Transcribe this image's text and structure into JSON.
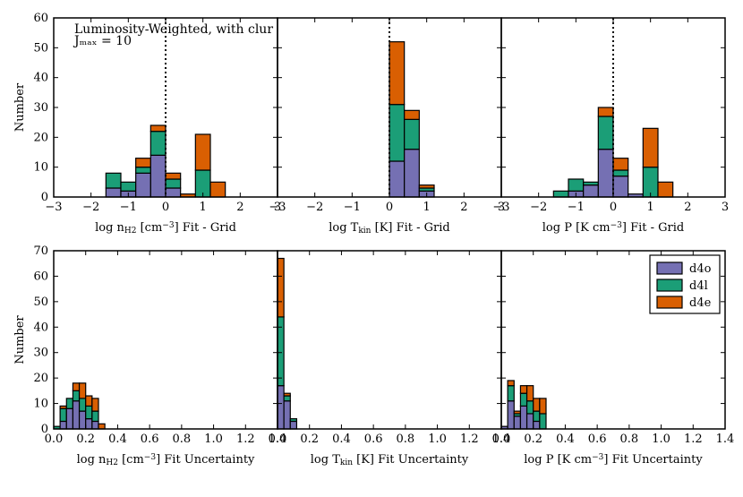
{
  "colors": {
    "d4o": "#7570b3",
    "d4l": "#1b9e77",
    "d4e": "#d95f02"
  },
  "chart_data": {
    "type": "bar",
    "stacking": "stacked",
    "series_names": [
      "d4o",
      "d4l",
      "d4e"
    ],
    "annotation": {
      "line1": "Luminosity-Weighted, with clur",
      "line2": "Jₘₐₓ = 10"
    },
    "legend": {
      "position": "top-right",
      "entries": [
        "d4o",
        "d4l",
        "d4e"
      ]
    },
    "rows": [
      {
        "ylabel": "Number",
        "ylim": [
          0,
          60
        ],
        "yticks": [
          "0",
          "10",
          "20",
          "30",
          "40",
          "50",
          "60"
        ]
      },
      {
        "ylabel": "Number",
        "ylim": [
          0,
          70
        ],
        "yticks": [
          "0",
          "10",
          "20",
          "30",
          "40",
          "50",
          "60",
          "70"
        ]
      }
    ],
    "panels": [
      {
        "id": "top-nh2",
        "row": 0,
        "col": 0,
        "xlabel": "log n_H2 [cm^-3] Fit - Grid",
        "xlim": [
          -3,
          3
        ],
        "xticks": [
          "−3",
          "−2",
          "−1",
          "0",
          "1",
          "2",
          "3"
        ],
        "xtick_values": [
          -3,
          -2,
          -1,
          0,
          1,
          2,
          3
        ],
        "vline": 0,
        "bin_width": 0.4,
        "bins": [
          {
            "x": -1.6,
            "d4o": 3,
            "d4l": 5,
            "d4e": 0
          },
          {
            "x": -1.2,
            "d4o": 2,
            "d4l": 3,
            "d4e": 0
          },
          {
            "x": -0.8,
            "d4o": 8,
            "d4l": 2,
            "d4e": 3
          },
          {
            "x": -0.4,
            "d4o": 14,
            "d4l": 8,
            "d4e": 2
          },
          {
            "x": 0.0,
            "d4o": 3,
            "d4l": 3,
            "d4e": 2
          },
          {
            "x": 0.4,
            "d4o": 0,
            "d4l": 0,
            "d4e": 1
          },
          {
            "x": 0.8,
            "d4o": 0,
            "d4l": 9,
            "d4e": 12
          },
          {
            "x": 1.2,
            "d4o": 0,
            "d4l": 0,
            "d4e": 5
          }
        ]
      },
      {
        "id": "top-tkin",
        "row": 0,
        "col": 1,
        "xlabel": "log T_kin [K] Fit - Grid",
        "xlim": [
          -3,
          3
        ],
        "xticks": [
          "−3",
          "−2",
          "−1",
          "0",
          "1",
          "2",
          "3"
        ],
        "xtick_values": [
          -3,
          -2,
          -1,
          0,
          1,
          2,
          3
        ],
        "vline": 0,
        "bin_width": 0.4,
        "bins": [
          {
            "x": 0.0,
            "d4o": 12,
            "d4l": 19,
            "d4e": 21
          },
          {
            "x": 0.4,
            "d4o": 16,
            "d4l": 10,
            "d4e": 3
          },
          {
            "x": 0.8,
            "d4o": 2,
            "d4l": 1,
            "d4e": 1
          }
        ]
      },
      {
        "id": "top-p",
        "row": 0,
        "col": 2,
        "xlabel": "log P [K cm^-3] Fit - Grid",
        "xlim": [
          -3,
          3
        ],
        "xticks": [
          "−3",
          "−2",
          "−1",
          "0",
          "1",
          "2",
          "3"
        ],
        "xtick_values": [
          -3,
          -2,
          -1,
          0,
          1,
          2,
          3
        ],
        "vline": 0,
        "bin_width": 0.4,
        "bins": [
          {
            "x": -1.6,
            "d4o": 0,
            "d4l": 2,
            "d4e": 0
          },
          {
            "x": -1.2,
            "d4o": 2,
            "d4l": 4,
            "d4e": 0
          },
          {
            "x": -0.8,
            "d4o": 4,
            "d4l": 1,
            "d4e": 0
          },
          {
            "x": -0.4,
            "d4o": 16,
            "d4l": 11,
            "d4e": 3
          },
          {
            "x": 0.0,
            "d4o": 7,
            "d4l": 2,
            "d4e": 4
          },
          {
            "x": 0.4,
            "d4o": 1,
            "d4l": 0,
            "d4e": 0
          },
          {
            "x": 0.8,
            "d4o": 0,
            "d4l": 10,
            "d4e": 13
          },
          {
            "x": 1.2,
            "d4o": 0,
            "d4l": 0,
            "d4e": 5
          }
        ]
      },
      {
        "id": "bottom-nh2",
        "row": 1,
        "col": 0,
        "xlabel": "log n_H2 [cm^-3] Fit Uncertainty",
        "xlim": [
          0,
          1.4
        ],
        "xticks": [
          "0.0",
          "0.2",
          "0.4",
          "0.6",
          "0.8",
          "1.0",
          "1.2",
          "1.4"
        ],
        "xtick_values": [
          0,
          0.2,
          0.4,
          0.6,
          0.8,
          1.0,
          1.2,
          1.4
        ],
        "vline": null,
        "bin_width": 0.04,
        "bins": [
          {
            "x": 0.0,
            "d4o": 0,
            "d4l": 1,
            "d4e": 0
          },
          {
            "x": 0.04,
            "d4o": 3,
            "d4l": 5,
            "d4e": 1
          },
          {
            "x": 0.08,
            "d4o": 8,
            "d4l": 4,
            "d4e": 0
          },
          {
            "x": 0.12,
            "d4o": 11,
            "d4l": 4,
            "d4e": 3
          },
          {
            "x": 0.16,
            "d4o": 7,
            "d4l": 5,
            "d4e": 6
          },
          {
            "x": 0.2,
            "d4o": 4,
            "d4l": 5,
            "d4e": 4
          },
          {
            "x": 0.24,
            "d4o": 3,
            "d4l": 4,
            "d4e": 5
          },
          {
            "x": 0.28,
            "d4o": 0,
            "d4l": 0,
            "d4e": 2
          }
        ]
      },
      {
        "id": "bottom-tkin",
        "row": 1,
        "col": 1,
        "xlabel": "log T_kin [K] Fit Uncertainty",
        "xlim": [
          0,
          1.4
        ],
        "xticks": [
          "0.0",
          "0.2",
          "0.4",
          "0.6",
          "0.8",
          "1.0",
          "1.2",
          "1.4"
        ],
        "xtick_values": [
          0,
          0.2,
          0.4,
          0.6,
          0.8,
          1.0,
          1.2,
          1.4
        ],
        "vline": null,
        "bin_width": 0.04,
        "bins": [
          {
            "x": 0.0,
            "d4o": 17,
            "d4l": 27,
            "d4e": 23
          },
          {
            "x": 0.04,
            "d4o": 11,
            "d4l": 2,
            "d4e": 1
          },
          {
            "x": 0.08,
            "d4o": 3,
            "d4l": 1,
            "d4e": 0
          }
        ]
      },
      {
        "id": "bottom-p",
        "row": 1,
        "col": 2,
        "xlabel": "log P [K cm^-3] Fit Uncertainty",
        "xlim": [
          0,
          1.4
        ],
        "xticks": [
          "0.0",
          "0.2",
          "0.4",
          "0.6",
          "0.8",
          "1.0",
          "1.2",
          "1.4"
        ],
        "xtick_values": [
          0,
          0.2,
          0.4,
          0.6,
          0.8,
          1.0,
          1.2,
          1.4
        ],
        "vline": null,
        "bin_width": 0.04,
        "bins": [
          {
            "x": 0.0,
            "d4o": 1,
            "d4l": 0,
            "d4e": 0
          },
          {
            "x": 0.04,
            "d4o": 11,
            "d4l": 6,
            "d4e": 2
          },
          {
            "x": 0.08,
            "d4o": 5,
            "d4l": 1,
            "d4e": 1
          },
          {
            "x": 0.12,
            "d4o": 9,
            "d4l": 5,
            "d4e": 3
          },
          {
            "x": 0.16,
            "d4o": 6,
            "d4l": 5,
            "d4e": 6
          },
          {
            "x": 0.2,
            "d4o": 3,
            "d4l": 4,
            "d4e": 5
          },
          {
            "x": 0.24,
            "d4o": 0,
            "d4l": 6,
            "d4e": 6
          }
        ]
      }
    ]
  }
}
